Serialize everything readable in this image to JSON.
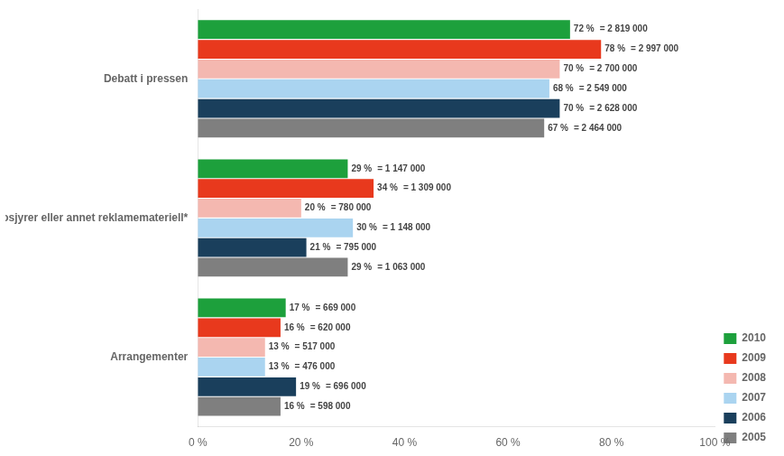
{
  "chart_data": {
    "type": "bar",
    "orientation": "horizontal",
    "categories": [
      "Debatt i pressen",
      "Brosjyrer eller annet reklamemateriell*",
      "Arrangementer"
    ],
    "series": [
      {
        "name": "2010",
        "color": "#1da03c",
        "values": [
          72,
          29,
          17
        ],
        "value_labels": [
          "72 %",
          "29 %",
          "17 %"
        ],
        "count_labels": [
          "= 2 819 000",
          "= 1 147 000",
          "= 669 000"
        ]
      },
      {
        "name": "2009",
        "color": "#e8391d",
        "values": [
          78,
          34,
          16
        ],
        "value_labels": [
          "78 %",
          "34 %",
          "16 %"
        ],
        "count_labels": [
          "= 2 997 000",
          "= 1 309 000",
          "= 620 000"
        ]
      },
      {
        "name": "2008",
        "color": "#f4b8b0",
        "values": [
          70,
          20,
          13
        ],
        "value_labels": [
          "70 %",
          "20 %",
          "13 %"
        ],
        "count_labels": [
          "= 2 700 000",
          "= 780 000",
          "= 517 000"
        ]
      },
      {
        "name": "2007",
        "color": "#aad4f0",
        "values": [
          68,
          30,
          13
        ],
        "value_labels": [
          "68 %",
          "30 %",
          "13 %"
        ],
        "count_labels": [
          "= 2 549 000",
          "= 1 148 000",
          "= 476 000"
        ]
      },
      {
        "name": "2006",
        "color": "#1a3f5c",
        "values": [
          70,
          21,
          19
        ],
        "value_labels": [
          "70 %",
          "21 %",
          "19 %"
        ],
        "count_labels": [
          "= 2 628 000",
          "= 795 000",
          "= 696 000"
        ]
      },
      {
        "name": "2005",
        "color": "#7f7f7f",
        "values": [
          67,
          29,
          16
        ],
        "value_labels": [
          "67 %",
          "29 %",
          "16 %"
        ],
        "count_labels": [
          "= 2 464 000",
          "= 1 063 000",
          "= 598 000"
        ]
      }
    ],
    "xlim": [
      0,
      100
    ],
    "xticks": [
      {
        "value": 0,
        "label": "0 %"
      },
      {
        "value": 20,
        "label": "20 %"
      },
      {
        "value": 40,
        "label": "40 %"
      },
      {
        "value": 60,
        "label": "60 %"
      },
      {
        "value": 80,
        "label": "80 %"
      },
      {
        "value": 100,
        "label": "100 %"
      }
    ],
    "grid": false,
    "legend": "lower right",
    "data_labels": true
  }
}
